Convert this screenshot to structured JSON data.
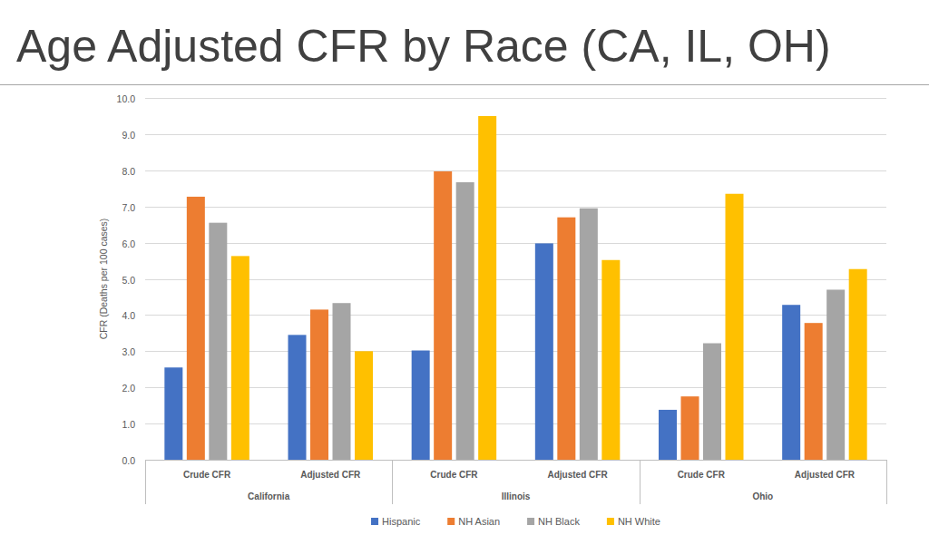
{
  "chart_data": {
    "type": "bar",
    "title": "Age Adjusted CFR by Race (CA, IL, OH)",
    "y_label": "CFR (Deaths per 100 cases)",
    "groups": [
      "California",
      "Illinois",
      "Ohio"
    ],
    "categories": [
      "Crude CFR",
      "Adjusted CFR",
      "Crude CFR",
      "Adjusted CFR",
      "Crude CFR",
      "Adjusted CFR"
    ],
    "series": [
      {
        "name": "Hispanic",
        "color": "#4472c4",
        "values": [
          2.55,
          3.45,
          3.02,
          5.98,
          1.38,
          4.28
        ]
      },
      {
        "name": "NH Asian",
        "color": "#ed7d31",
        "values": [
          7.27,
          4.15,
          7.97,
          6.7,
          1.75,
          3.78
        ]
      },
      {
        "name": "NH Black",
        "color": "#a5a5a5",
        "values": [
          6.55,
          4.33,
          7.67,
          6.95,
          3.22,
          4.7
        ]
      },
      {
        "name": "NH White",
        "color": "#ffc000",
        "values": [
          5.63,
          3.0,
          9.5,
          5.52,
          7.35,
          5.27
        ]
      }
    ],
    "ylim": [
      0,
      10
    ],
    "yticks": [
      {
        "value": 0,
        "label": "0.0"
      },
      {
        "value": 1,
        "label": "1.0"
      },
      {
        "value": 2,
        "label": "2.0"
      },
      {
        "value": 3,
        "label": "3.0"
      },
      {
        "value": 4,
        "label": "4.0"
      },
      {
        "value": 5,
        "label": "5.0"
      },
      {
        "value": 6,
        "label": "6.0"
      },
      {
        "value": 7,
        "label": "7.0"
      },
      {
        "value": 8,
        "label": "8.0"
      },
      {
        "value": 9,
        "label": "9.0"
      },
      {
        "value": 10,
        "label": "10.0"
      }
    ],
    "grid": true,
    "legend": "bottom"
  }
}
